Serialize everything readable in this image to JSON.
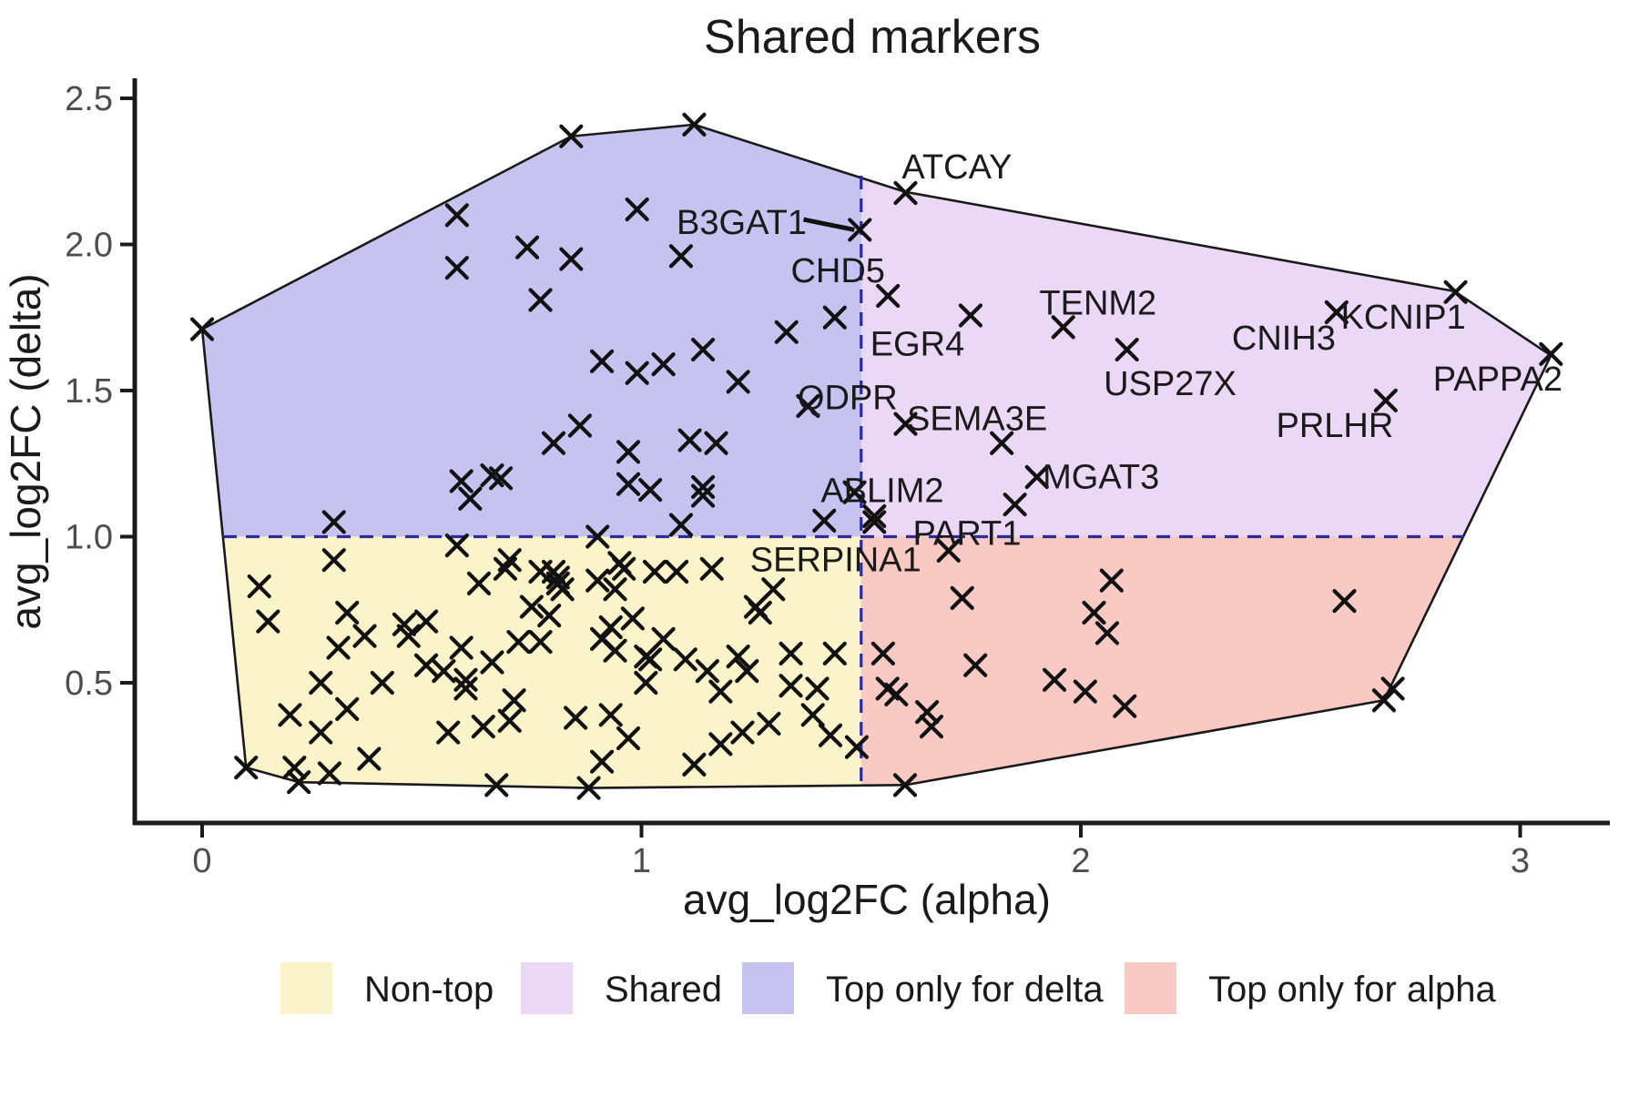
{
  "title": "Shared markers",
  "chart_data": {
    "type": "scatter",
    "title": "Shared markers",
    "xlabel": "avg_log2FC (alpha)",
    "ylabel": "avg_log2FC (delta)",
    "xlim": [
      -0.15,
      3.2
    ],
    "ylim": [
      0.0,
      2.5
    ],
    "x_ticks": [
      "0",
      "1",
      "2",
      "3"
    ],
    "x_tick_values": [
      0,
      1,
      2,
      3
    ],
    "y_ticks": [
      "2.5",
      "2.0",
      "1.5",
      "1.0",
      "0.5"
    ],
    "y_tick_values": [
      2.5,
      2.0,
      1.5,
      1.0,
      0.5
    ],
    "grid": "off",
    "legend_position": "bottom",
    "thresholds": {
      "x": 1.5,
      "y": 1.0,
      "line_color": "#2b2b9b",
      "line_style": "dashed"
    },
    "marker": {
      "shape": "x",
      "color": "#111111",
      "size": 11,
      "stroke_width": 4.2
    },
    "hull_outline_color": "#1a1a1a",
    "hull": [
      [
        0.0,
        1.71
      ],
      [
        0.84,
        2.37
      ],
      [
        1.12,
        2.41
      ],
      [
        1.6,
        2.18
      ],
      [
        2.85,
        1.84
      ],
      [
        3.07,
        1.62
      ],
      [
        2.69,
        0.44
      ],
      [
        1.6,
        0.15
      ],
      [
        0.88,
        0.14
      ],
      [
        0.22,
        0.16
      ],
      [
        0.1,
        0.21
      ]
    ],
    "regions": [
      {
        "name": "Non-top",
        "quadrant": "x<1.5 & y<1.0",
        "color": "#FBF4CB"
      },
      {
        "name": "Shared",
        "quadrant": "x>1.5 & y>1.0",
        "color": "#EBD7F6"
      },
      {
        "name": "Top only for delta",
        "quadrant": "x<1.5 & y>1.0",
        "color": "#C6C3F1"
      },
      {
        "name": "Top only for alpha",
        "quadrant": "x>1.5 & y<1.0",
        "color": "#F9C9C3"
      }
    ],
    "points": {
      "top_only_delta": [
        [
          0.0,
          1.71
        ],
        [
          0.84,
          2.37
        ],
        [
          1.12,
          2.41
        ],
        [
          0.58,
          2.1
        ],
        [
          0.58,
          1.92
        ],
        [
          0.99,
          2.12
        ],
        [
          0.74,
          1.99
        ],
        [
          0.84,
          1.95
        ],
        [
          1.09,
          1.96
        ],
        [
          0.77,
          1.81
        ],
        [
          1.44,
          1.75
        ],
        [
          1.33,
          1.7
        ],
        [
          0.91,
          1.6
        ],
        [
          1.14,
          1.64
        ],
        [
          0.99,
          1.56
        ],
        [
          1.05,
          1.59
        ],
        [
          1.22,
          1.53
        ],
        [
          0.86,
          1.38
        ],
        [
          0.8,
          1.32
        ],
        [
          1.11,
          1.33
        ],
        [
          1.17,
          1.32
        ],
        [
          0.97,
          1.29
        ],
        [
          0.97,
          1.18
        ],
        [
          1.02,
          1.16
        ],
        [
          1.14,
          1.17
        ],
        [
          1.14,
          1.14
        ],
        [
          1.09,
          1.04
        ],
        [
          0.9,
          1.0
        ],
        [
          0.59,
          1.19
        ],
        [
          0.66,
          1.21
        ],
        [
          0.68,
          1.2
        ],
        [
          0.61,
          1.13
        ],
        [
          0.3,
          1.05
        ]
      ],
      "shared": [
        [
          1.82,
          1.32
        ],
        [
          1.85,
          1.11
        ],
        [
          1.53,
          1.07
        ],
        [
          1.53,
          1.05
        ]
      ],
      "non_top": [
        [
          0.1,
          0.21
        ],
        [
          0.22,
          0.16
        ],
        [
          0.29,
          0.19
        ],
        [
          0.21,
          0.21
        ],
        [
          0.67,
          0.15
        ],
        [
          0.88,
          0.14
        ],
        [
          0.13,
          0.83
        ],
        [
          0.3,
          0.92
        ],
        [
          0.58,
          0.97
        ],
        [
          0.63,
          0.84
        ],
        [
          0.7,
          0.92
        ],
        [
          0.69,
          0.89
        ],
        [
          0.77,
          0.88
        ],
        [
          0.8,
          0.88
        ],
        [
          0.81,
          0.86
        ],
        [
          0.81,
          0.84
        ],
        [
          0.82,
          0.82
        ],
        [
          0.95,
          0.91
        ],
        [
          0.96,
          0.89
        ],
        [
          0.9,
          0.85
        ],
        [
          0.94,
          0.82
        ],
        [
          1.03,
          0.88
        ],
        [
          1.08,
          0.88
        ],
        [
          1.16,
          0.89
        ],
        [
          1.3,
          0.82
        ],
        [
          0.15,
          0.71
        ],
        [
          0.33,
          0.74
        ],
        [
          0.37,
          0.66
        ],
        [
          0.31,
          0.62
        ],
        [
          0.46,
          0.7
        ],
        [
          0.47,
          0.66
        ],
        [
          0.51,
          0.71
        ],
        [
          0.51,
          0.56
        ],
        [
          0.59,
          0.62
        ],
        [
          0.55,
          0.54
        ],
        [
          0.6,
          0.51
        ],
        [
          0.6,
          0.48
        ],
        [
          0.27,
          0.5
        ],
        [
          0.41,
          0.5
        ],
        [
          0.2,
          0.39
        ],
        [
          0.33,
          0.41
        ],
        [
          0.27,
          0.33
        ],
        [
          0.66,
          0.57
        ],
        [
          0.56,
          0.33
        ],
        [
          0.64,
          0.35
        ],
        [
          0.71,
          0.44
        ],
        [
          0.7,
          0.37
        ],
        [
          0.38,
          0.24
        ],
        [
          1.12,
          0.22
        ],
        [
          0.75,
          0.76
        ],
        [
          0.79,
          0.73
        ],
        [
          0.72,
          0.64
        ],
        [
          0.77,
          0.64
        ],
        [
          0.85,
          0.38
        ],
        [
          0.93,
          0.39
        ],
        [
          0.97,
          0.31
        ],
        [
          0.91,
          0.23
        ],
        [
          0.93,
          0.69
        ],
        [
          0.98,
          0.72
        ],
        [
          0.91,
          0.65
        ],
        [
          0.94,
          0.61
        ],
        [
          1.01,
          0.59
        ],
        [
          1.02,
          0.58
        ],
        [
          1.05,
          0.65
        ],
        [
          1.1,
          0.58
        ],
        [
          1.15,
          0.54
        ],
        [
          1.01,
          0.5
        ],
        [
          1.18,
          0.47
        ],
        [
          1.22,
          0.59
        ],
        [
          1.24,
          0.54
        ],
        [
          1.18,
          0.29
        ],
        [
          1.23,
          0.33
        ],
        [
          1.29,
          0.36
        ],
        [
          1.26,
          0.76
        ],
        [
          1.27,
          0.74
        ],
        [
          1.34,
          0.6
        ],
        [
          1.34,
          0.49
        ],
        [
          1.4,
          0.48
        ],
        [
          1.44,
          0.6
        ],
        [
          1.39,
          0.39
        ],
        [
          1.43,
          0.32
        ],
        [
          1.49,
          0.28
        ]
      ],
      "top_only_alpha": [
        [
          2.69,
          0.44
        ],
        [
          1.6,
          0.15
        ],
        [
          1.73,
          0.79
        ],
        [
          2.07,
          0.85
        ],
        [
          2.03,
          0.74
        ],
        [
          2.06,
          0.67
        ],
        [
          1.76,
          0.56
        ],
        [
          1.55,
          0.6
        ],
        [
          1.56,
          0.48
        ],
        [
          1.58,
          0.46
        ],
        [
          1.65,
          0.4
        ],
        [
          1.66,
          0.35
        ],
        [
          1.94,
          0.51
        ],
        [
          2.01,
          0.47
        ],
        [
          2.1,
          0.42
        ],
        [
          2.6,
          0.78
        ],
        [
          2.71,
          0.48
        ]
      ]
    },
    "labeled_points": [
      {
        "label": "ATCAY",
        "x": 1.601,
        "y": 2.176,
        "lx": 1.718,
        "ly": 2.266
      },
      {
        "label": "B3GAT1",
        "x": 1.497,
        "y": 2.05,
        "lx": 1.228,
        "ly": 2.076,
        "segment": true
      },
      {
        "label": "CHD5",
        "x": 1.561,
        "y": 1.824,
        "lx": 1.447,
        "ly": 1.911
      },
      {
        "label": "EGR4",
        "x": 1.749,
        "y": 1.757,
        "lx": 1.628,
        "ly": 1.66
      },
      {
        "label": "TENM2",
        "x": 1.96,
        "y": 1.717,
        "lx": 2.039,
        "ly": 1.801
      },
      {
        "label": "USP27X",
        "x": 2.105,
        "y": 1.64,
        "lx": 2.203,
        "ly": 1.525
      },
      {
        "label": "CNIH3",
        "x": 2.582,
        "y": 1.768,
        "lx": 2.462,
        "ly": 1.681
      },
      {
        "label": "KCNIP1",
        "x": 2.853,
        "y": 1.837,
        "lx": 2.734,
        "ly": 1.752
      },
      {
        "label": "PAPPA2",
        "x": 3.07,
        "y": 1.625,
        "lx": 2.949,
        "ly": 1.541
      },
      {
        "label": "PRLHR",
        "x": 2.694,
        "y": 1.466,
        "lx": 2.578,
        "ly": 1.382
      },
      {
        "label": "QDPR",
        "x": 1.379,
        "y": 1.447,
        "lx": 1.469,
        "ly": 1.477
      },
      {
        "label": "SEMA3E",
        "x": 1.601,
        "y": 1.386,
        "lx": 1.764,
        "ly": 1.405
      },
      {
        "label": "MGAT3",
        "x": 1.9,
        "y": 1.204,
        "lx": 2.046,
        "ly": 1.206
      },
      {
        "label": "ABLIM2",
        "x": 1.485,
        "y": 1.152,
        "lx": 1.548,
        "ly": 1.159
      },
      {
        "label": "PART1",
        "x": 1.699,
        "y": 0.952,
        "lx": 1.741,
        "ly": 1.013
      },
      {
        "label": "SERPINA1",
        "x": 1.416,
        "y": 1.055,
        "lx": 1.442,
        "ly": 0.922
      }
    ]
  },
  "legend": {
    "items": [
      {
        "label": "Non-top",
        "color": "#FBF4CB"
      },
      {
        "label": "Shared",
        "color": "#EBD7F6"
      },
      {
        "label": "Top only for delta",
        "color": "#C6C3F1"
      },
      {
        "label": "Top only for alpha",
        "color": "#F9C9C3"
      }
    ]
  },
  "style": {
    "axis_color": "#1a1a1a",
    "tick_label_color": "#4d4d4d",
    "text_color": "#1a1a1a"
  }
}
